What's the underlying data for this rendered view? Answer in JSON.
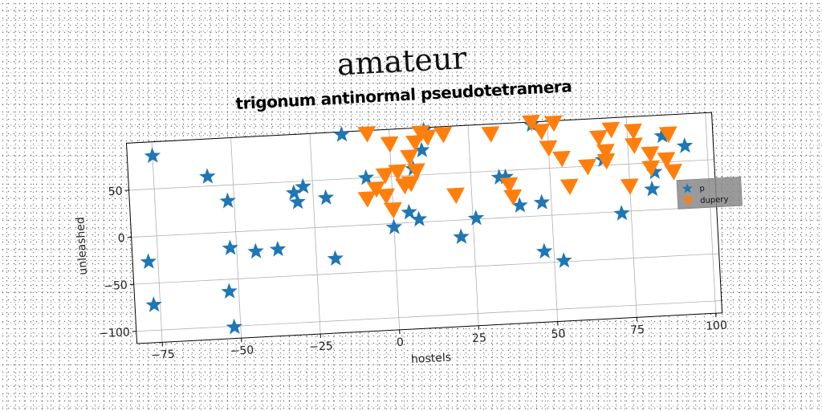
{
  "overtitle": "amateur",
  "chart_data": {
    "type": "scatter",
    "title": "trigonum antinormal pseudotetramera",
    "xlabel": "hostels",
    "ylabel": "unleashed",
    "xlim": [
      -83,
      102
    ],
    "ylim": [
      -113,
      100
    ],
    "xticks": [
      -75,
      -50,
      -25,
      0,
      25,
      50,
      75,
      100
    ],
    "yticks": [
      -100,
      -50,
      0,
      50
    ],
    "grid": true,
    "legend_position": "right",
    "series": [
      {
        "name": "p",
        "marker": "star",
        "color": "#1f77b4",
        "points": [
          [
            -75,
            85
          ],
          [
            -58,
            60
          ],
          [
            -52,
            33
          ],
          [
            -78,
            -27
          ],
          [
            -77,
            -73
          ],
          [
            -52,
            -17
          ],
          [
            -53,
            -63
          ],
          [
            -52,
            -101
          ],
          [
            -44,
            -22
          ],
          [
            -37,
            -21
          ],
          [
            -31,
            38
          ],
          [
            -30,
            28
          ],
          [
            -28,
            44
          ],
          [
            -21,
            31
          ],
          [
            -19,
            -34
          ],
          [
            -15,
            97
          ],
          [
            -8,
            50
          ],
          [
            0,
            -4
          ],
          [
            5,
            11
          ],
          [
            8,
            3
          ],
          [
            7,
            57
          ],
          [
            10,
            76
          ],
          [
            11,
            97
          ],
          [
            21,
            -18
          ],
          [
            26,
            1
          ],
          [
            34,
            43
          ],
          [
            36,
            43
          ],
          [
            40,
            12
          ],
          [
            45,
            97
          ],
          [
            47,
            14
          ],
          [
            47,
            -38
          ],
          [
            53,
            -49
          ],
          [
            67,
            56
          ],
          [
            72,
            -2
          ],
          [
            83,
            40
          ],
          [
            86,
            78
          ],
          [
            93,
            66
          ],
          [
            82,
            22
          ]
        ]
      },
      {
        "name": "dupery",
        "marker": "triangle_down",
        "color": "#ff7f0e",
        "points": [
          [
            -7,
            97
          ],
          [
            0,
            85
          ],
          [
            -2,
            52
          ],
          [
            2,
            55
          ],
          [
            -5,
            38
          ],
          [
            -8,
            28
          ],
          [
            -2,
            30
          ],
          [
            0,
            15
          ],
          [
            4,
            40
          ],
          [
            6,
            42
          ],
          [
            8,
            55
          ],
          [
            10,
            95
          ],
          [
            6,
            70
          ],
          [
            8,
            85
          ],
          [
            12,
            90
          ],
          [
            17,
            92
          ],
          [
            20,
            27
          ],
          [
            32,
            90
          ],
          [
            37,
            35
          ],
          [
            38,
            22
          ],
          [
            45,
            100
          ],
          [
            48,
            90
          ],
          [
            52,
            98
          ],
          [
            50,
            72
          ],
          [
            54,
            60
          ],
          [
            56,
            30
          ],
          [
            62,
            50
          ],
          [
            66,
            80
          ],
          [
            68,
            55
          ],
          [
            68,
            65
          ],
          [
            70,
            88
          ],
          [
            75,
            27
          ],
          [
            77,
            85
          ],
          [
            77,
            70
          ],
          [
            82,
            60
          ],
          [
            82,
            45
          ],
          [
            87,
            53
          ],
          [
            88,
            80
          ],
          [
            89,
            40
          ]
        ]
      }
    ]
  }
}
